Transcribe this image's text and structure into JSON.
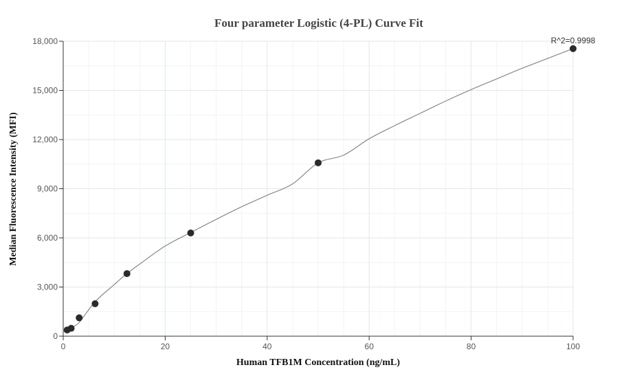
{
  "chart_data": {
    "type": "scatter",
    "title": "Four parameter Logistic (4-PL) Curve Fit",
    "xlabel": "Human TFB1M Concentration (ng/mL)",
    "ylabel": "Median Fluorescence Intensity (MFI)",
    "xlim": [
      0,
      100
    ],
    "ylim": [
      0,
      18000
    ],
    "x_ticks": [
      0,
      20,
      40,
      60,
      80,
      100
    ],
    "x_tick_labels": [
      "0",
      "20",
      "40",
      "60",
      "80",
      "100"
    ],
    "y_ticks": [
      0,
      3000,
      6000,
      9000,
      12000,
      15000,
      18000
    ],
    "y_tick_labels": [
      "0",
      "3,000",
      "6,000",
      "9,000",
      "12,000",
      "15,000",
      "18,000"
    ],
    "grid": true,
    "annotation": "R^2=0.9998",
    "points": {
      "x": [
        0.78,
        1.56,
        3.13,
        6.25,
        12.5,
        25,
        50,
        100
      ],
      "y": [
        380,
        480,
        1120,
        1980,
        3820,
        6300,
        10580,
        17550
      ]
    },
    "fit_curve": {
      "x": [
        0,
        0.78,
        1.56,
        3.13,
        6.25,
        10,
        12.5,
        15,
        20,
        25,
        30,
        35,
        40,
        45,
        50,
        55,
        60,
        65,
        70,
        75,
        80,
        85,
        90,
        95,
        100
      ],
      "y": [
        250,
        380,
        520,
        840,
        2100,
        3150,
        3820,
        4400,
        5500,
        6330,
        7130,
        7900,
        8600,
        9300,
        10580,
        11050,
        12050,
        12850,
        13600,
        14350,
        15050,
        15700,
        16350,
        16950,
        17550
      ]
    }
  }
}
